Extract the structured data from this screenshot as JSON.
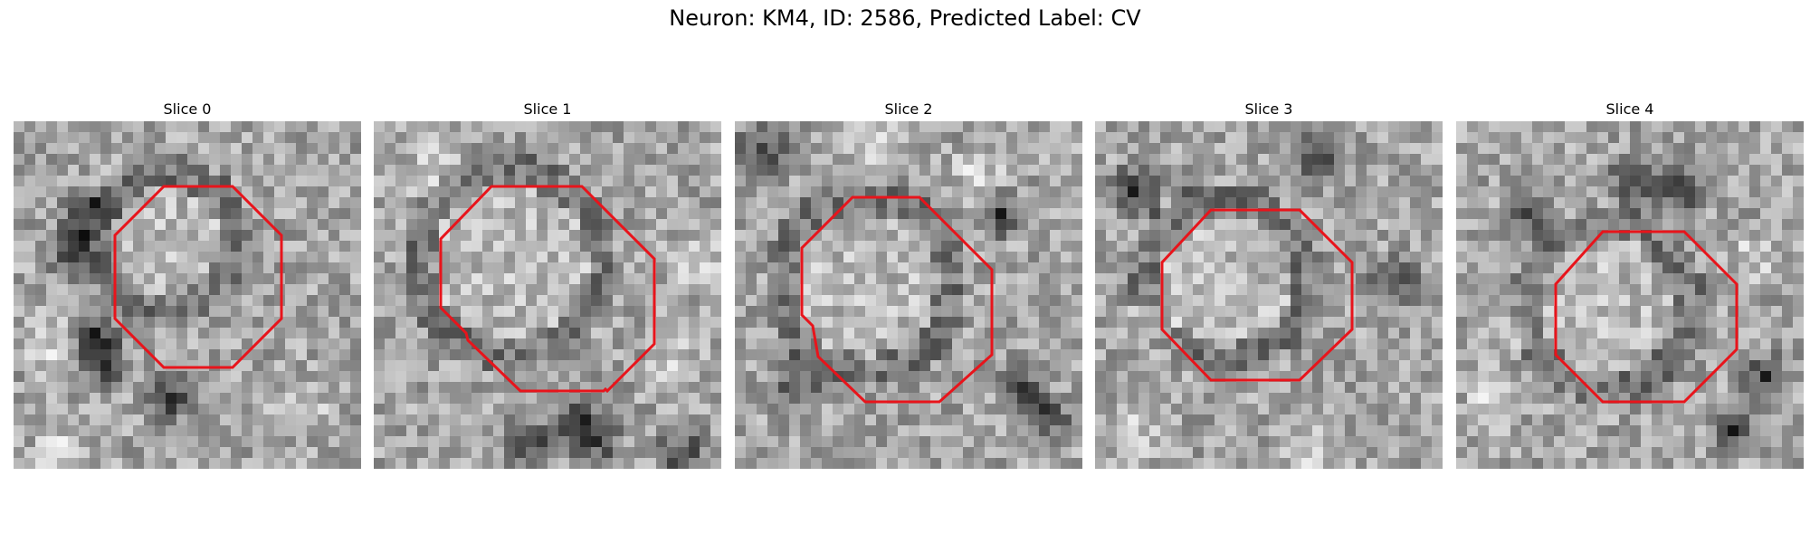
{
  "figure": {
    "title": "Neuron: KM4, ID: 2586, Predicted Label: CV"
  },
  "panels": [
    {
      "label": "Slice 0"
    },
    {
      "label": "Slice 1"
    },
    {
      "label": "Slice 2"
    },
    {
      "label": "Slice 3"
    },
    {
      "label": "Slice 4"
    }
  ],
  "colors": {
    "contour": "#e8141b",
    "background": "#ffffff"
  }
}
